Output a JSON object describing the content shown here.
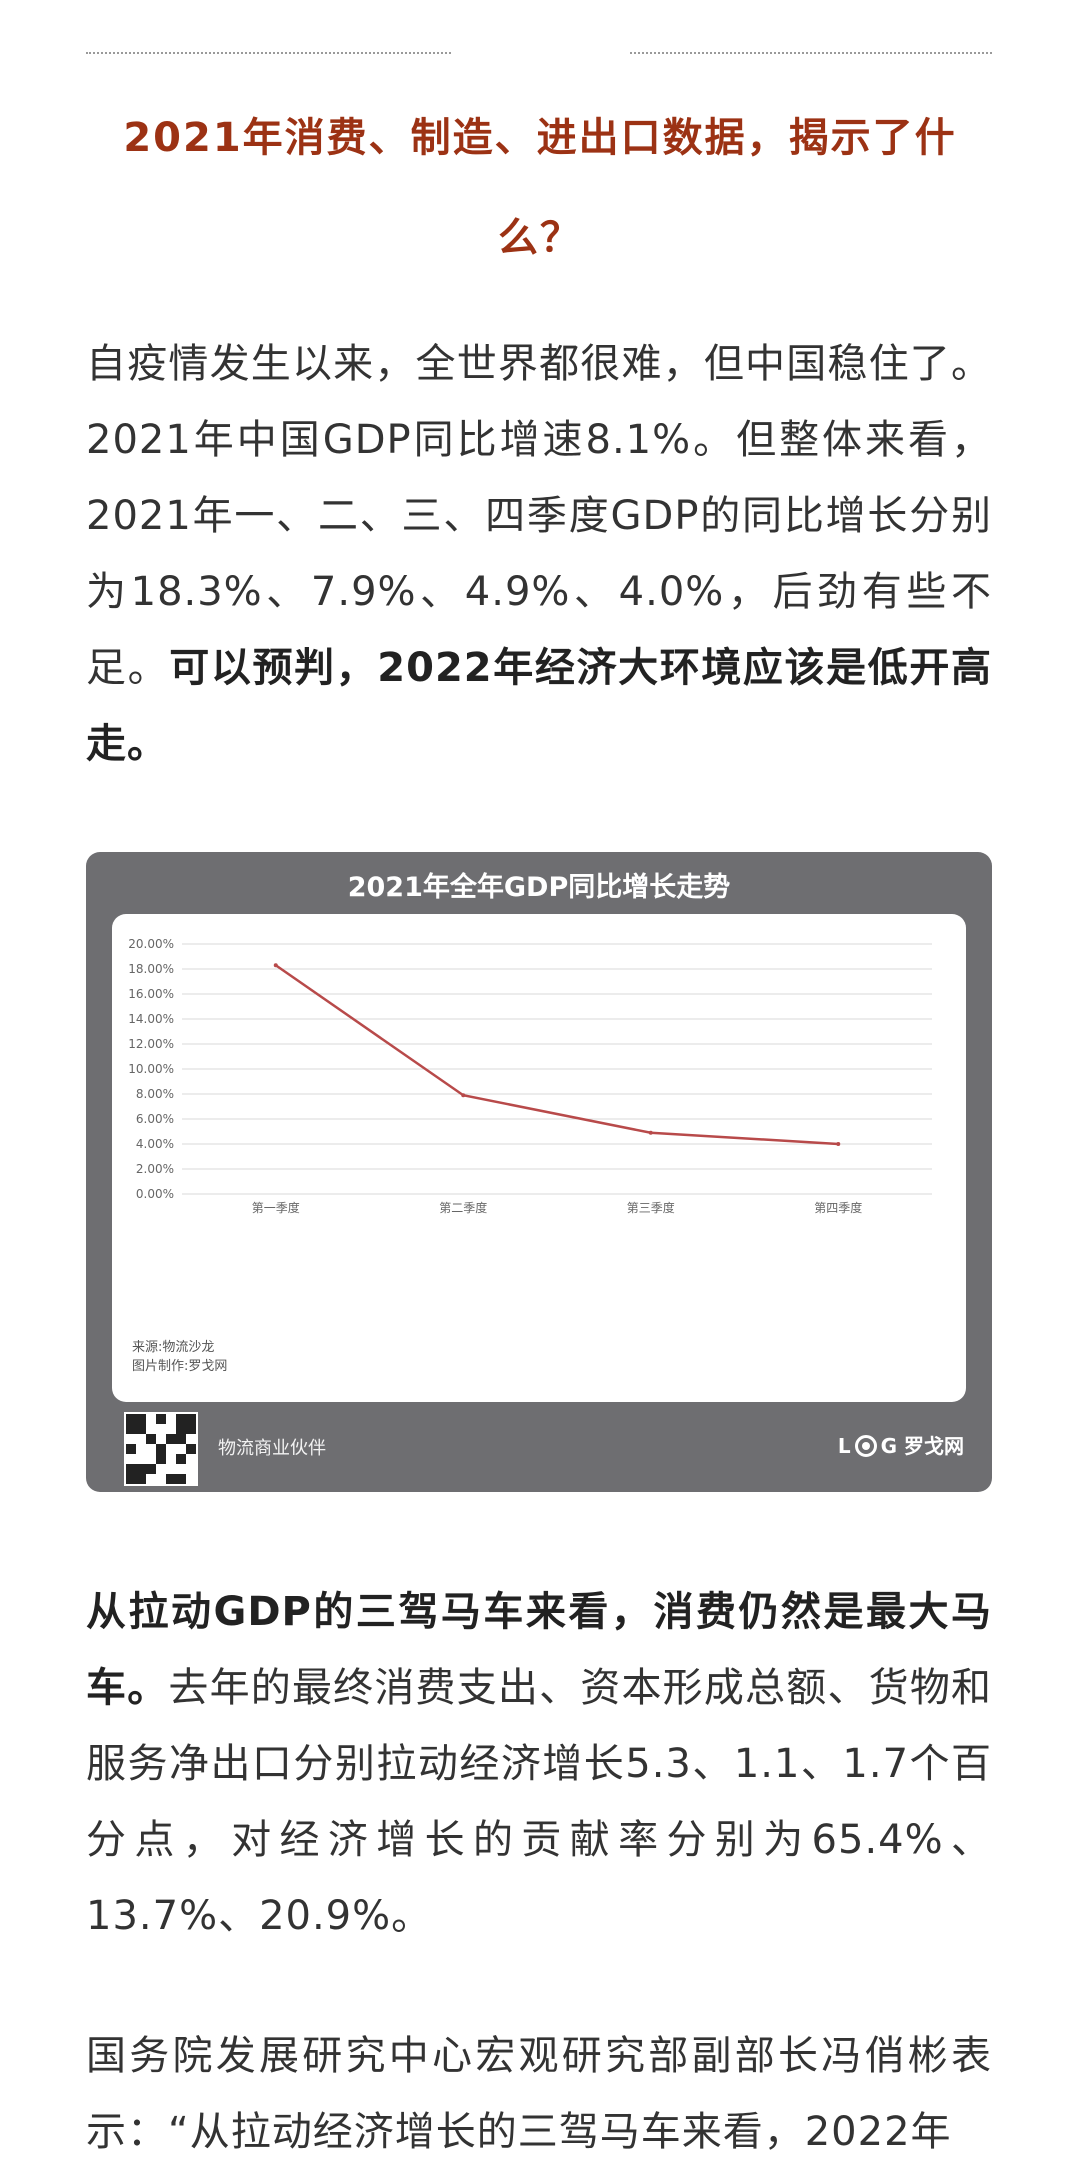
{
  "article": {
    "title": "2021年消费、制造、进出口数据，揭示了什么？",
    "para1_normal": "自疫情发生以来，全世界都很难，但中国稳住了。2021年中国GDP同比增速8.1%。但整体来看，2021年一、二、三、四季度GDP的同比增长分别为18.3%、7.9%、4.9%、4.0%，后劲有些不足。",
    "para1_bold": "可以预判，2022年经济大环境应该是低开高走。",
    "para2_bold": "从拉动GDP的三驾马车来看，消费仍然是最大马车。",
    "para2_normal": "去年的最终消费支出、资本形成总额、货物和服务净出口分别拉动经济增长5.3、1.1、1.7个百分点，对经济增长的贡献率分别为65.4%、13.7%、20.9%。",
    "para3_normal": "国务院发展研究中心宏观研究部副部长冯俏彬表示：“从拉动经济增长的三驾马车来看，2022年"
  },
  "card": {
    "source_line1": "来源:物流沙龙",
    "source_line2": "图片制作:罗戈网",
    "partner_text": "物流商业伙伴",
    "logo_prefix": "L",
    "logo_suffix": "G 罗戈网",
    "qr_icon": "qr-code-icon"
  },
  "chart_data": {
    "type": "line",
    "title": "2021年全年GDP同比增长走势",
    "categories": [
      "第一季度",
      "第二季度",
      "第三季度",
      "第四季度"
    ],
    "series": [
      {
        "values": [
          18.3,
          7.9,
          4.9,
          4.0
        ],
        "color": "#b84a4a"
      }
    ],
    "ylim": [
      0,
      20
    ],
    "yticks": [
      "0.00%",
      "2.00%",
      "4.00%",
      "6.00%",
      "8.00%",
      "10.00%",
      "12.00%",
      "14.00%",
      "16.00%",
      "18.00%",
      "20.00%"
    ],
    "grid": true
  },
  "colors": {
    "title": "#9c3214",
    "card_bg": "#6e6e71",
    "line": "#b84a4a"
  }
}
